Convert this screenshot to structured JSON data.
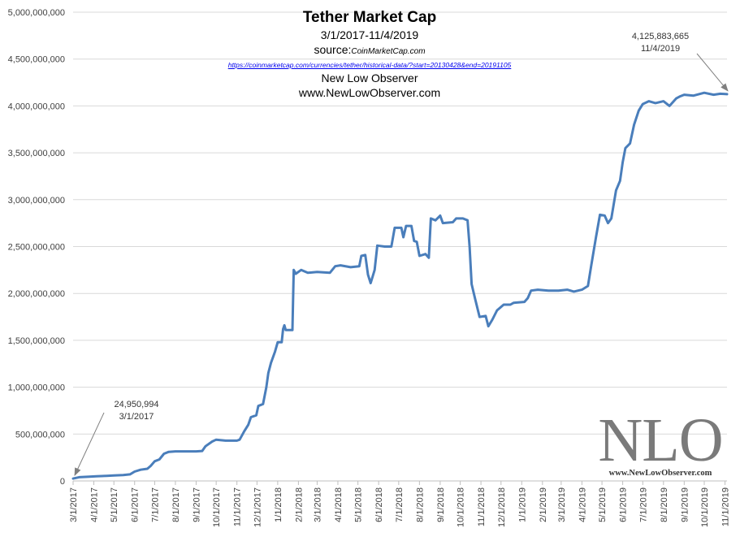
{
  "title": {
    "main": "Tether Market Cap",
    "range": "3/1/2017-11/4/2019",
    "source_label": "source:",
    "source_site": "CoinMarketCap.com",
    "url": "https://coinmarketcap.com/currencies/tether/historical-data/?start=20130428&end=20191105",
    "author": "New Low Observer",
    "website": "www.NewLowObserver.com"
  },
  "logo": {
    "text": "NLO",
    "subtext": "www.NewLowObserver.com"
  },
  "annotations": {
    "start_value": "24,950,994",
    "start_date": "3/1/2017",
    "end_value": "4,125,883,665",
    "end_date": "11/4/2019"
  },
  "colors": {
    "line": "#4a7ebb",
    "grid": "#d9d9d9",
    "axis_text": "#404040"
  },
  "chart_data": {
    "type": "line",
    "title": "Tether Market Cap",
    "ylim": [
      0,
      5000000000
    ],
    "grid": true,
    "y_ticks": [
      0,
      500000000,
      1000000000,
      1500000000,
      2000000000,
      2500000000,
      3000000000,
      3500000000,
      4000000000,
      4500000000,
      5000000000
    ],
    "y_tick_labels": [
      "0",
      "500,000,000",
      "1,000,000,000",
      "1,500,000,000",
      "2,000,000,000",
      "2,500,000,000",
      "3,000,000,000",
      "3,500,000,000",
      "4,000,000,000",
      "4,500,000,000",
      "5,000,000,000"
    ],
    "x_tick_labels": [
      "3/1/2017",
      "4/1/2017",
      "5/1/2017",
      "6/1/2017",
      "7/1/2017",
      "8/1/2017",
      "9/1/2017",
      "10/1/2017",
      "11/1/2017",
      "12/1/2017",
      "1/1/2018",
      "2/1/2018",
      "3/1/2018",
      "4/1/2018",
      "5/1/2018",
      "6/1/2018",
      "7/1/2018",
      "8/1/2018",
      "9/1/2018",
      "10/1/2018",
      "11/1/2018",
      "12/1/2018",
      "1/1/2019",
      "2/1/2019",
      "3/1/2019",
      "4/1/2019",
      "5/1/2019",
      "6/1/2019",
      "7/1/2019",
      "8/1/2019",
      "9/1/2019",
      "10/1/2019",
      "11/1/2019"
    ],
    "x_range": [
      "2017-03-01",
      "2019-11-04"
    ],
    "series": [
      {
        "points": [
          [
            "2017-03-01",
            24950994
          ],
          [
            "2017-03-10",
            40000000
          ],
          [
            "2017-03-25",
            45000000
          ],
          [
            "2017-04-05",
            50000000
          ],
          [
            "2017-04-20",
            55000000
          ],
          [
            "2017-05-01",
            58000000
          ],
          [
            "2017-05-15",
            62000000
          ],
          [
            "2017-05-25",
            70000000
          ],
          [
            "2017-06-01",
            100000000
          ],
          [
            "2017-06-10",
            120000000
          ],
          [
            "2017-06-20",
            130000000
          ],
          [
            "2017-06-25",
            160000000
          ],
          [
            "2017-07-01",
            210000000
          ],
          [
            "2017-07-08",
            230000000
          ],
          [
            "2017-07-15",
            290000000
          ],
          [
            "2017-07-22",
            310000000
          ],
          [
            "2017-08-01",
            315000000
          ],
          [
            "2017-08-15",
            315000000
          ],
          [
            "2017-09-01",
            315000000
          ],
          [
            "2017-09-10",
            320000000
          ],
          [
            "2017-09-15",
            370000000
          ],
          [
            "2017-09-25",
            420000000
          ],
          [
            "2017-10-01",
            440000000
          ],
          [
            "2017-10-15",
            430000000
          ],
          [
            "2017-11-01",
            430000000
          ],
          [
            "2017-11-05",
            440000000
          ],
          [
            "2017-11-12",
            530000000
          ],
          [
            "2017-11-18",
            600000000
          ],
          [
            "2017-11-22",
            680000000
          ],
          [
            "2017-11-30",
            700000000
          ],
          [
            "2017-12-03",
            800000000
          ],
          [
            "2017-12-10",
            820000000
          ],
          [
            "2017-12-15",
            1000000000
          ],
          [
            "2017-12-18",
            1150000000
          ],
          [
            "2017-12-22",
            1260000000
          ],
          [
            "2017-12-28",
            1380000000
          ],
          [
            "2018-01-01",
            1480000000
          ],
          [
            "2018-01-07",
            1480000000
          ],
          [
            "2018-01-09",
            1620000000
          ],
          [
            "2018-01-11",
            1660000000
          ],
          [
            "2018-01-13",
            1610000000
          ],
          [
            "2018-01-23",
            1610000000
          ],
          [
            "2018-01-25",
            2250000000
          ],
          [
            "2018-01-28",
            2210000000
          ],
          [
            "2018-02-05",
            2250000000
          ],
          [
            "2018-02-15",
            2220000000
          ],
          [
            "2018-03-01",
            2230000000
          ],
          [
            "2018-03-20",
            2220000000
          ],
          [
            "2018-03-28",
            2290000000
          ],
          [
            "2018-04-05",
            2300000000
          ],
          [
            "2018-04-20",
            2280000000
          ],
          [
            "2018-05-03",
            2290000000
          ],
          [
            "2018-05-06",
            2400000000
          ],
          [
            "2018-05-12",
            2410000000
          ],
          [
            "2018-05-16",
            2200000000
          ],
          [
            "2018-05-20",
            2110000000
          ],
          [
            "2018-05-26",
            2250000000
          ],
          [
            "2018-05-30",
            2510000000
          ],
          [
            "2018-06-10",
            2500000000
          ],
          [
            "2018-06-20",
            2500000000
          ],
          [
            "2018-06-25",
            2700000000
          ],
          [
            "2018-07-05",
            2700000000
          ],
          [
            "2018-07-08",
            2600000000
          ],
          [
            "2018-07-12",
            2720000000
          ],
          [
            "2018-07-20",
            2720000000
          ],
          [
            "2018-07-24",
            2560000000
          ],
          [
            "2018-07-28",
            2550000000
          ],
          [
            "2018-08-01",
            2400000000
          ],
          [
            "2018-08-10",
            2420000000
          ],
          [
            "2018-08-15",
            2380000000
          ],
          [
            "2018-08-18",
            2800000000
          ],
          [
            "2018-08-25",
            2780000000
          ],
          [
            "2018-09-01",
            2830000000
          ],
          [
            "2018-09-05",
            2750000000
          ],
          [
            "2018-09-20",
            2760000000
          ],
          [
            "2018-09-25",
            2800000000
          ],
          [
            "2018-10-05",
            2800000000
          ],
          [
            "2018-10-12",
            2780000000
          ],
          [
            "2018-10-15",
            2500000000
          ],
          [
            "2018-10-18",
            2100000000
          ],
          [
            "2018-10-23",
            1950000000
          ],
          [
            "2018-10-30",
            1750000000
          ],
          [
            "2018-11-08",
            1760000000
          ],
          [
            "2018-11-12",
            1650000000
          ],
          [
            "2018-11-18",
            1720000000
          ],
          [
            "2018-11-25",
            1820000000
          ],
          [
            "2018-12-05",
            1880000000
          ],
          [
            "2018-12-15",
            1880000000
          ],
          [
            "2018-12-20",
            1900000000
          ],
          [
            "2019-01-05",
            1910000000
          ],
          [
            "2019-01-10",
            1950000000
          ],
          [
            "2019-01-15",
            2030000000
          ],
          [
            "2019-01-25",
            2040000000
          ],
          [
            "2019-02-10",
            2030000000
          ],
          [
            "2019-02-25",
            2030000000
          ],
          [
            "2019-03-10",
            2040000000
          ],
          [
            "2019-03-20",
            2020000000
          ],
          [
            "2019-04-01",
            2040000000
          ],
          [
            "2019-04-10",
            2080000000
          ],
          [
            "2019-04-15",
            2300000000
          ],
          [
            "2019-04-22",
            2600000000
          ],
          [
            "2019-04-28",
            2840000000
          ],
          [
            "2019-05-05",
            2830000000
          ],
          [
            "2019-05-10",
            2750000000
          ],
          [
            "2019-05-15",
            2800000000
          ],
          [
            "2019-05-22",
            3100000000
          ],
          [
            "2019-05-28",
            3200000000
          ],
          [
            "2019-06-01",
            3400000000
          ],
          [
            "2019-06-05",
            3550000000
          ],
          [
            "2019-06-12",
            3600000000
          ],
          [
            "2019-06-18",
            3800000000
          ],
          [
            "2019-06-25",
            3950000000
          ],
          [
            "2019-07-01",
            4020000000
          ],
          [
            "2019-07-10",
            4050000000
          ],
          [
            "2019-07-20",
            4030000000
          ],
          [
            "2019-08-01",
            4050000000
          ],
          [
            "2019-08-10",
            4000000000
          ],
          [
            "2019-08-20",
            4080000000
          ],
          [
            "2019-08-25",
            4100000000
          ],
          [
            "2019-09-01",
            4120000000
          ],
          [
            "2019-09-15",
            4110000000
          ],
          [
            "2019-10-01",
            4140000000
          ],
          [
            "2019-10-15",
            4120000000
          ],
          [
            "2019-10-25",
            4130000000
          ],
          [
            "2019-11-04",
            4125883665
          ]
        ]
      }
    ],
    "annotations": [
      {
        "x": "2017-03-01",
        "y": 24950994,
        "text": [
          "24,950,994",
          "3/1/2017"
        ]
      },
      {
        "x": "2019-11-04",
        "y": 4125883665,
        "text": [
          "4,125,883,665",
          "11/4/2019"
        ]
      }
    ]
  }
}
